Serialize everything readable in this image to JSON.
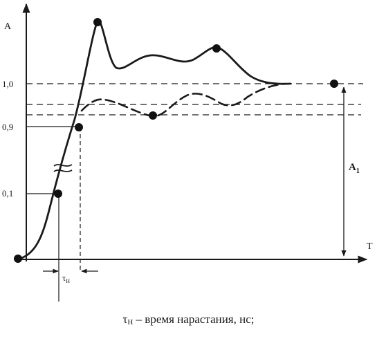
{
  "axes": {
    "y_label": "A",
    "x_label": "T"
  },
  "y_ticks": [
    "1,0",
    "0,9",
    "0,1"
  ],
  "amplitude_label": {
    "main": "A",
    "subscript": "1"
  },
  "rise_time_label": {
    "main": "τ",
    "subscript": "Н"
  },
  "caption": {
    "symbol": "τ",
    "subscript": "Н",
    "text": " – время нарастания, нс;"
  }
}
